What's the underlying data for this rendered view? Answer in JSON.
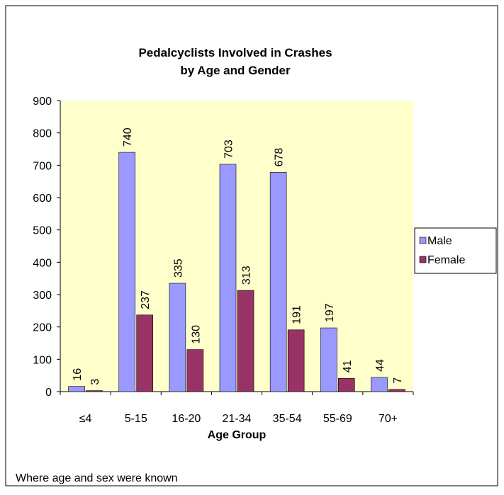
{
  "chart_data": {
    "type": "bar",
    "title": [
      "Pedalcyclists Involved in Crashes",
      "by Age and Gender"
    ],
    "x_label": "Age Group",
    "categories": [
      "≤4",
      "5-15",
      "16-20",
      "21-34",
      "35-54",
      "55-69",
      "70+"
    ],
    "series": [
      {
        "name": "Male",
        "color": "#9999ff",
        "values": [
          16,
          740,
          335,
          703,
          678,
          197,
          44
        ]
      },
      {
        "name": "Female",
        "color": "#993366",
        "values": [
          3,
          237,
          130,
          313,
          191,
          41,
          7
        ]
      }
    ],
    "ylim": [
      0,
      900
    ],
    "yticks": [
      0,
      100,
      200,
      300,
      400,
      500,
      600,
      700,
      800,
      900
    ],
    "legend": "right",
    "note": "Where age and sex were known"
  }
}
